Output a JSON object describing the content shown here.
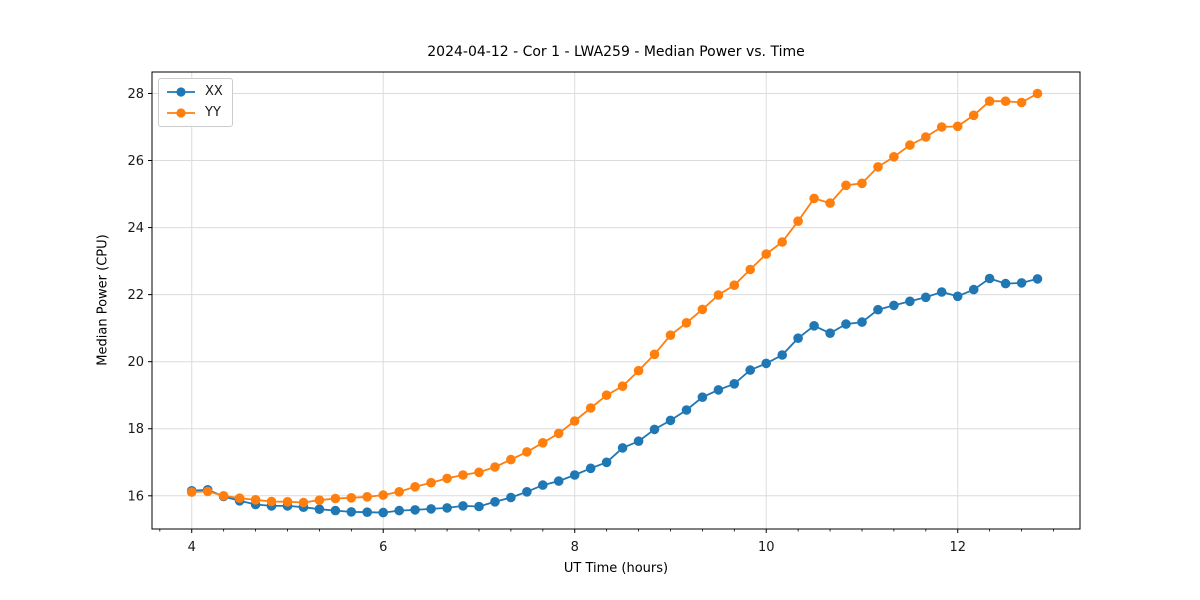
{
  "figure": {
    "title": "2024-04-12 - Cor 1 - LWA259 - Median Power vs. Time",
    "xlabel": "UT Time (hours)",
    "ylabel": "Median Power (CPU)"
  },
  "chart_data": {
    "type": "line",
    "title": "2024-04-12 - Cor 1 - LWA259 - Median Power vs. Time",
    "xlabel": "UT Time (hours)",
    "ylabel": "Median Power (CPU)",
    "grid": true,
    "legend_position": "upper left",
    "marker": "circle",
    "x_ticks": [
      4,
      6,
      8,
      10,
      12
    ],
    "y_ticks": [
      16,
      18,
      20,
      22,
      24,
      26,
      28
    ],
    "xlim": [
      3.585,
      13.277
    ],
    "ylim": [
      15.01,
      28.64
    ],
    "x": [
      4.0,
      4.167,
      4.333,
      4.5,
      4.667,
      4.833,
      5.0,
      5.167,
      5.333,
      5.5,
      5.667,
      5.833,
      6.0,
      6.167,
      6.333,
      6.5,
      6.667,
      6.833,
      7.0,
      7.167,
      7.333,
      7.5,
      7.667,
      7.833,
      8.0,
      8.167,
      8.333,
      8.5,
      8.667,
      8.833,
      9.0,
      9.167,
      9.333,
      9.5,
      9.667,
      9.833,
      10.0,
      10.167,
      10.333,
      10.5,
      10.667,
      10.833,
      11.0,
      11.167,
      11.333,
      11.5,
      11.667,
      11.833,
      12.0,
      12.167,
      12.333,
      12.5,
      12.667,
      12.833
    ],
    "series": [
      {
        "name": "XX",
        "color": "#1f77b4",
        "values": [
          16.15,
          16.18,
          15.98,
          15.85,
          15.74,
          15.7,
          15.7,
          15.66,
          15.6,
          15.56,
          15.52,
          15.51,
          15.5,
          15.56,
          15.58,
          15.61,
          15.64,
          15.7,
          15.68,
          15.82,
          15.95,
          16.12,
          16.32,
          16.44,
          16.62,
          16.82,
          17.0,
          17.43,
          17.63,
          17.98,
          18.25,
          18.56,
          18.94,
          19.16,
          19.34,
          19.75,
          19.95,
          20.2,
          20.7,
          21.07,
          20.85,
          21.12,
          21.18,
          21.55,
          21.68,
          21.8,
          21.92,
          22.08,
          21.95,
          22.15,
          22.48,
          22.33,
          22.35,
          22.47
        ]
      },
      {
        "name": "YY",
        "color": "#ff7f0e",
        "values": [
          16.11,
          16.13,
          16.0,
          15.93,
          15.88,
          15.83,
          15.82,
          15.8,
          15.87,
          15.92,
          15.94,
          15.97,
          16.02,
          16.12,
          16.27,
          16.39,
          16.52,
          16.62,
          16.7,
          16.86,
          17.08,
          17.31,
          17.58,
          17.86,
          18.23,
          18.62,
          19.0,
          19.27,
          19.73,
          20.22,
          20.79,
          21.16,
          21.56,
          21.99,
          22.28,
          22.75,
          23.21,
          23.57,
          24.19,
          24.87,
          24.73,
          25.26,
          25.32,
          25.81,
          26.11,
          26.46,
          26.7,
          27.0,
          27.02,
          27.35,
          27.77,
          27.77,
          27.73,
          28.0
        ]
      }
    ],
    "style": {
      "grid_color": "#dcdcdc",
      "spine_color": "#000000",
      "tick_label_color": "#1a1a1a",
      "background": "#ffffff"
    }
  }
}
